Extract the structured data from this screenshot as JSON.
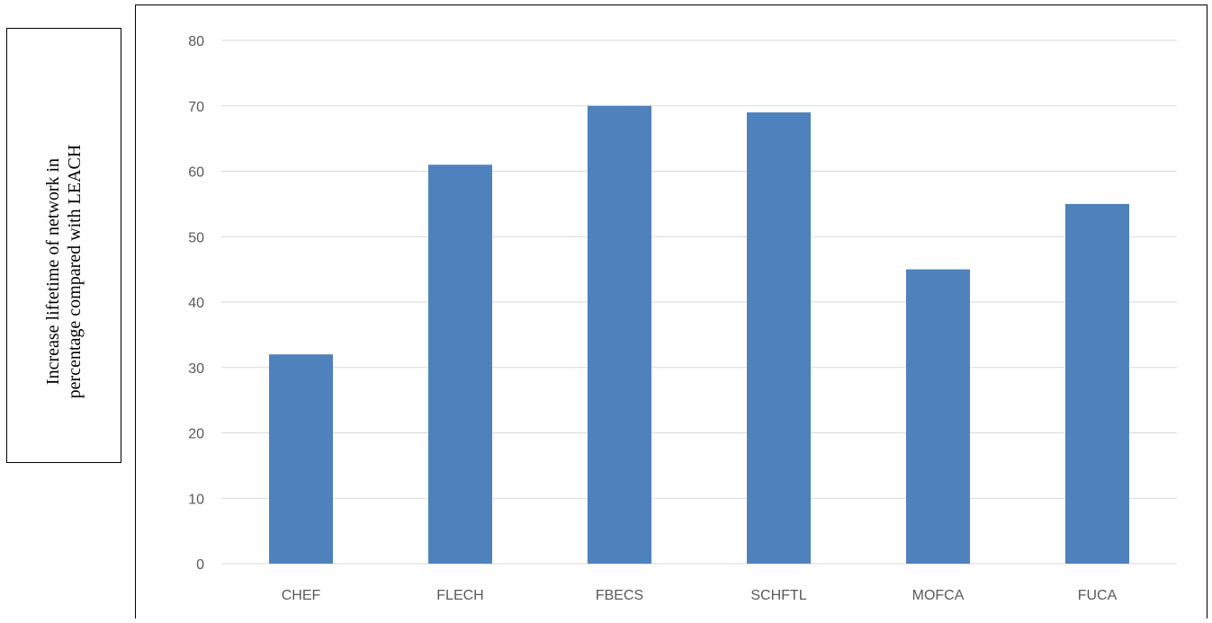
{
  "chart_data": {
    "type": "bar",
    "title": "",
    "xlabel": "",
    "ylabel": "Increase liftetime of network in percentage compared with LEACH",
    "ylabel_lines": [
      "Increase liftetime of network in",
      "percentage compared with LEACH"
    ],
    "categories": [
      "CHEF",
      "FLECH",
      "FBECS",
      "SCHFTL",
      "MOFCA",
      "FUCA"
    ],
    "values": [
      32,
      61,
      70,
      69,
      45,
      55
    ],
    "ylim": [
      0,
      80
    ],
    "yticks": [
      0,
      10,
      20,
      30,
      40,
      50,
      60,
      70,
      80
    ],
    "grid": true,
    "legend": "none",
    "bar_color": "#4f81bd",
    "grid_color": "#d9d9d9",
    "tick_color": "#595959"
  }
}
